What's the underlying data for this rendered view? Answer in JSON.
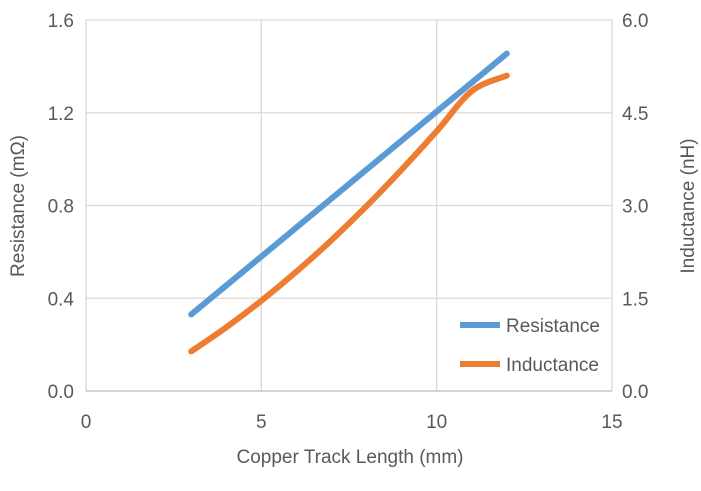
{
  "chart_data": {
    "type": "line",
    "xlabel": "Copper Track Length (mm)",
    "ylabel_left": "Resistance (mΩ)",
    "ylabel_right": "Inductance (nH)",
    "xlim": [
      0,
      15
    ],
    "ylim_left": [
      0,
      1.6
    ],
    "ylim_right": [
      0,
      6
    ],
    "x_ticks": [
      "0",
      "5",
      "10",
      "15"
    ],
    "y_ticks_left": [
      "0.0",
      "0.4",
      "0.8",
      "1.2",
      "1.6"
    ],
    "y_ticks_right": [
      "0.0",
      "1.5",
      "3.0",
      "4.5",
      "6.0"
    ],
    "grid": true,
    "legend_position": "bottom-right",
    "series": [
      {
        "name": "Resistance",
        "axis": "left",
        "color": "#5b9bd5",
        "x": [
          3,
          4,
          5,
          6,
          7,
          8,
          9,
          10,
          11,
          12
        ],
        "y": [
          0.33,
          0.455,
          0.58,
          0.705,
          0.83,
          0.955,
          1.08,
          1.205,
          1.33,
          1.455
        ]
      },
      {
        "name": "Inductance",
        "axis": "right",
        "color": "#ed7d31",
        "x": [
          3,
          4,
          5,
          6,
          7,
          8,
          9,
          10,
          11,
          12
        ],
        "y": [
          0.64,
          1.03,
          1.46,
          1.93,
          2.44,
          2.99,
          3.58,
          4.2,
          4.85,
          5.1
        ]
      }
    ]
  }
}
